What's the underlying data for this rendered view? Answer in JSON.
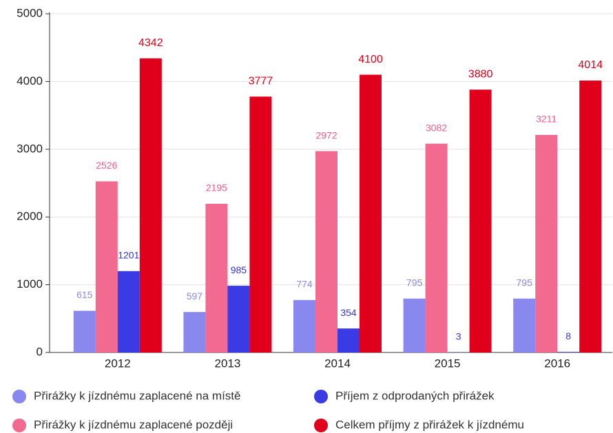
{
  "chart_data": {
    "type": "bar",
    "categories": [
      "2012",
      "2013",
      "2014",
      "2015",
      "2016"
    ],
    "series": [
      {
        "name": "Přirážky k jízdnému zaplacené na místě",
        "color": "#8888ee",
        "label_color": "#8a8ae8",
        "values": [
          615,
          597,
          774,
          795,
          795
        ]
      },
      {
        "name": "Přirážky k jízdnému zaplacené později",
        "color": "#f26a8f",
        "label_color": "#ee5f88",
        "values": [
          2526,
          2195,
          2972,
          3082,
          3211
        ]
      },
      {
        "name": "Příjem z odprodaných přirážek",
        "color": "#3b3be6",
        "label_color": "#3434d8",
        "values": [
          1201,
          985,
          354,
          3,
          8
        ]
      },
      {
        "name": "Celkem příjmy z přirážek k jízdnému",
        "color": "#e0001b",
        "label_color": "#e0001b",
        "values": [
          4342,
          3777,
          4100,
          3880,
          4014
        ]
      }
    ],
    "ylim": [
      0,
      5000
    ],
    "yticks": [
      0,
      1000,
      2000,
      3000,
      4000,
      5000
    ],
    "grid": true
  }
}
